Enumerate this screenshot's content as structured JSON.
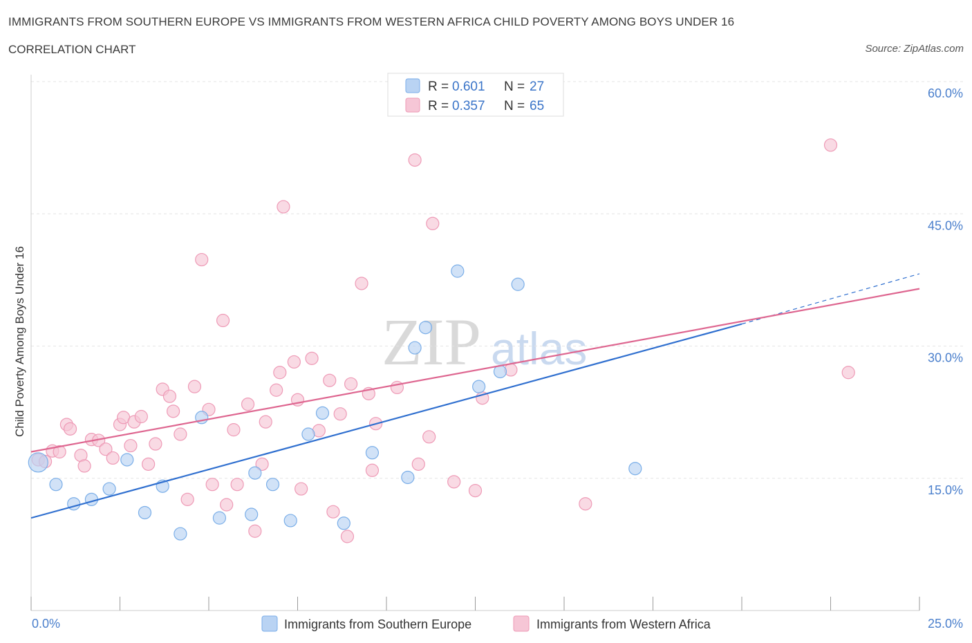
{
  "chart_data": {
    "type": "scatter",
    "title": "IMMIGRANTS FROM SOUTHERN EUROPE VS IMMIGRANTS FROM WESTERN AFRICA CHILD POVERTY AMONG BOYS UNDER 16",
    "subtitle": "CORRELATION CHART",
    "source": "Source: ZipAtlas.com",
    "ylabel": "Child Poverty Among Boys Under 16",
    "xlim": [
      0,
      25
    ],
    "ylim": [
      0,
      60
    ],
    "x_tick_labels": [
      "0.0%",
      "25.0%"
    ],
    "y_ticks": [
      15,
      30,
      45,
      60
    ],
    "y_tick_labels": [
      "15.0%",
      "30.0%",
      "45.0%",
      "60.0%"
    ],
    "watermark": {
      "zip": "ZIP",
      "atlas": "atlas"
    },
    "legend": {
      "r_label": "R =",
      "n_label": "N =",
      "entries": [
        {
          "r": "0.601",
          "n": "27"
        },
        {
          "r": "0.357",
          "n": "65"
        }
      ]
    },
    "series": [
      {
        "name": "Immigrants from Southern Europe",
        "color": "#7aaee8",
        "fill": "#b9d3f3",
        "line_color": "#2f6fcf",
        "trend": {
          "x0": 0,
          "y0": 10.5,
          "x1": 20,
          "y1": 32.5,
          "dash_to_x": 25,
          "dash_to_y": 38.2
        },
        "points": [
          [
            0.2,
            16.8
          ],
          [
            0.7,
            14.3
          ],
          [
            1.2,
            12.1
          ],
          [
            1.7,
            12.6
          ],
          [
            2.2,
            13.8
          ],
          [
            2.7,
            17.1
          ],
          [
            3.2,
            11.1
          ],
          [
            3.7,
            14.1
          ],
          [
            4.2,
            8.7
          ],
          [
            4.8,
            21.9
          ],
          [
            5.3,
            10.5
          ],
          [
            6.2,
            10.9
          ],
          [
            6.3,
            15.6
          ],
          [
            6.8,
            14.3
          ],
          [
            7.3,
            10.2
          ],
          [
            7.8,
            20.0
          ],
          [
            8.2,
            22.4
          ],
          [
            8.8,
            9.9
          ],
          [
            9.6,
            17.9
          ],
          [
            10.6,
            15.1
          ],
          [
            10.8,
            29.8
          ],
          [
            11.1,
            32.1
          ],
          [
            12.0,
            38.5
          ],
          [
            12.6,
            25.4
          ],
          [
            13.2,
            27.1
          ],
          [
            13.7,
            37.0
          ],
          [
            17.0,
            16.1
          ]
        ]
      },
      {
        "name": "Immigrants from Western Africa",
        "color": "#ee9ab6",
        "fill": "#f6c6d6",
        "line_color": "#de6690",
        "trend": {
          "x0": 0,
          "y0": 18.0,
          "x1": 25,
          "y1": 36.5
        },
        "points": [
          [
            0.2,
            17.1
          ],
          [
            0.4,
            16.9
          ],
          [
            0.6,
            18.1
          ],
          [
            0.8,
            18.0
          ],
          [
            1.0,
            21.1
          ],
          [
            1.1,
            20.6
          ],
          [
            1.4,
            17.6
          ],
          [
            1.5,
            16.4
          ],
          [
            1.7,
            19.4
          ],
          [
            1.9,
            19.3
          ],
          [
            2.1,
            18.3
          ],
          [
            2.3,
            17.3
          ],
          [
            2.5,
            21.1
          ],
          [
            2.6,
            21.9
          ],
          [
            2.8,
            18.7
          ],
          [
            2.9,
            21.4
          ],
          [
            3.1,
            22.0
          ],
          [
            3.3,
            16.6
          ],
          [
            3.5,
            18.9
          ],
          [
            3.7,
            25.1
          ],
          [
            3.9,
            24.3
          ],
          [
            4.0,
            22.6
          ],
          [
            4.2,
            20.0
          ],
          [
            4.4,
            12.6
          ],
          [
            4.6,
            25.4
          ],
          [
            4.8,
            39.8
          ],
          [
            5.0,
            22.8
          ],
          [
            5.1,
            14.3
          ],
          [
            5.4,
            32.9
          ],
          [
            5.5,
            12.0
          ],
          [
            5.7,
            20.5
          ],
          [
            5.8,
            14.3
          ],
          [
            6.1,
            23.4
          ],
          [
            6.3,
            9.0
          ],
          [
            6.5,
            16.6
          ],
          [
            6.6,
            21.4
          ],
          [
            6.9,
            25.0
          ],
          [
            7.0,
            27.0
          ],
          [
            7.1,
            45.8
          ],
          [
            7.4,
            28.2
          ],
          [
            7.5,
            23.9
          ],
          [
            7.6,
            13.8
          ],
          [
            7.9,
            28.6
          ],
          [
            8.1,
            20.4
          ],
          [
            8.4,
            26.1
          ],
          [
            8.5,
            11.2
          ],
          [
            8.7,
            22.3
          ],
          [
            8.9,
            8.4
          ],
          [
            9.0,
            25.7
          ],
          [
            9.3,
            37.1
          ],
          [
            9.5,
            24.6
          ],
          [
            9.6,
            15.9
          ],
          [
            9.7,
            21.2
          ],
          [
            10.3,
            25.3
          ],
          [
            10.8,
            51.1
          ],
          [
            10.9,
            16.6
          ],
          [
            11.2,
            19.7
          ],
          [
            11.3,
            43.9
          ],
          [
            11.9,
            14.6
          ],
          [
            12.5,
            13.6
          ],
          [
            12.7,
            24.1
          ],
          [
            13.5,
            27.3
          ],
          [
            15.6,
            12.1
          ],
          [
            22.5,
            52.8
          ],
          [
            23.0,
            27.0
          ]
        ]
      }
    ]
  }
}
